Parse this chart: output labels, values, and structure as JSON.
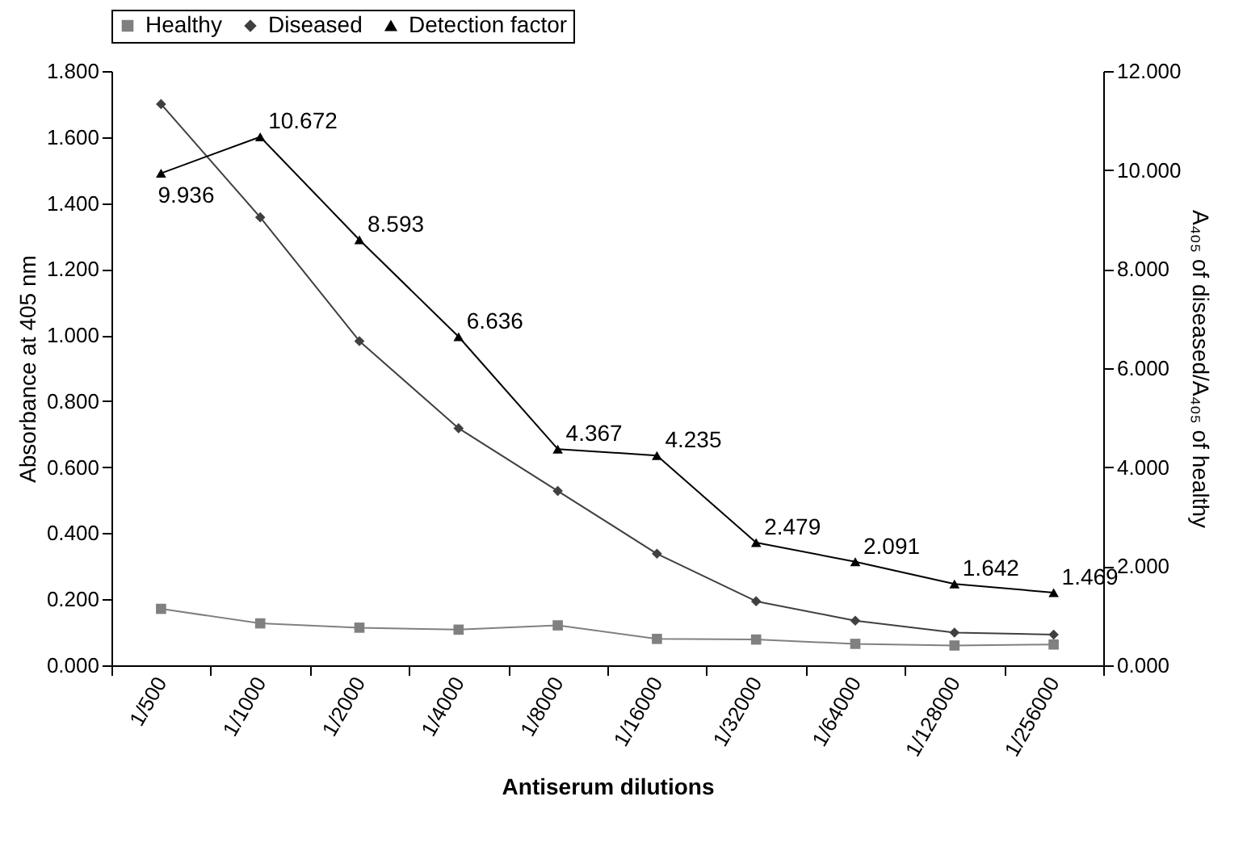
{
  "chart_data": {
    "type": "line",
    "xlabel": "Antiserum dilutions",
    "ylabel": "Absorbance at 405 nm",
    "y2label": "A₄₀₅ of diseased/A₄₀₅ of healthy",
    "categories": [
      "1/500",
      "1/1000",
      "1/2000",
      "1/4000",
      "1/8000",
      "1/16000",
      "1/32000",
      "1/64000",
      "1/128000",
      "1/256000"
    ],
    "series": [
      {
        "name": "Healthy",
        "color": "#808080",
        "marker": "square",
        "values": [
          0.171,
          0.127,
          0.114,
          0.108,
          0.121,
          0.08,
          0.078,
          0.065,
          0.06,
          0.063
        ]
      },
      {
        "name": "Diseased",
        "color": "#404040",
        "marker": "diamond",
        "values": [
          1.7,
          1.357,
          0.982,
          0.718,
          0.528,
          0.338,
          0.194,
          0.135,
          0.099,
          0.093
        ]
      },
      {
        "name": "Detection factor",
        "color": "#000000",
        "marker": "triangle",
        "axis": "y2",
        "values": [
          9.936,
          10.672,
          8.593,
          6.636,
          4.367,
          4.235,
          2.479,
          2.091,
          1.642,
          1.469
        ],
        "value_labels": [
          "9.936",
          "10.672",
          "8.593",
          "6.636",
          "4.367",
          "4.235",
          "2.479",
          "2.091",
          "1.642",
          "1.469"
        ]
      }
    ],
    "ylim": [
      0,
      1.8
    ],
    "yticks": [
      {
        "value": 0,
        "label": "0.000"
      },
      {
        "value": 0.2,
        "label": "0.200"
      },
      {
        "value": 0.4,
        "label": "0.400"
      },
      {
        "value": 0.6,
        "label": "0.600"
      },
      {
        "value": 0.8,
        "label": "0.800"
      },
      {
        "value": 1.0,
        "label": "1.000"
      },
      {
        "value": 1.2,
        "label": "1.200"
      },
      {
        "value": 1.4,
        "label": "1.400"
      },
      {
        "value": 1.6,
        "label": "1.600"
      },
      {
        "value": 1.8,
        "label": "1.800"
      }
    ],
    "y2lim": [
      0,
      12
    ],
    "y2ticks": [
      {
        "value": 0,
        "label": "0.000"
      },
      {
        "value": 2,
        "label": "2.000"
      },
      {
        "value": 4,
        "label": "4.000"
      },
      {
        "value": 6,
        "label": "6.000"
      },
      {
        "value": 8,
        "label": "8.000"
      },
      {
        "value": 10,
        "label": "10.000"
      },
      {
        "value": 12,
        "label": "12.000"
      }
    ],
    "legend": "top",
    "grid": false,
    "line_style": "solid"
  }
}
